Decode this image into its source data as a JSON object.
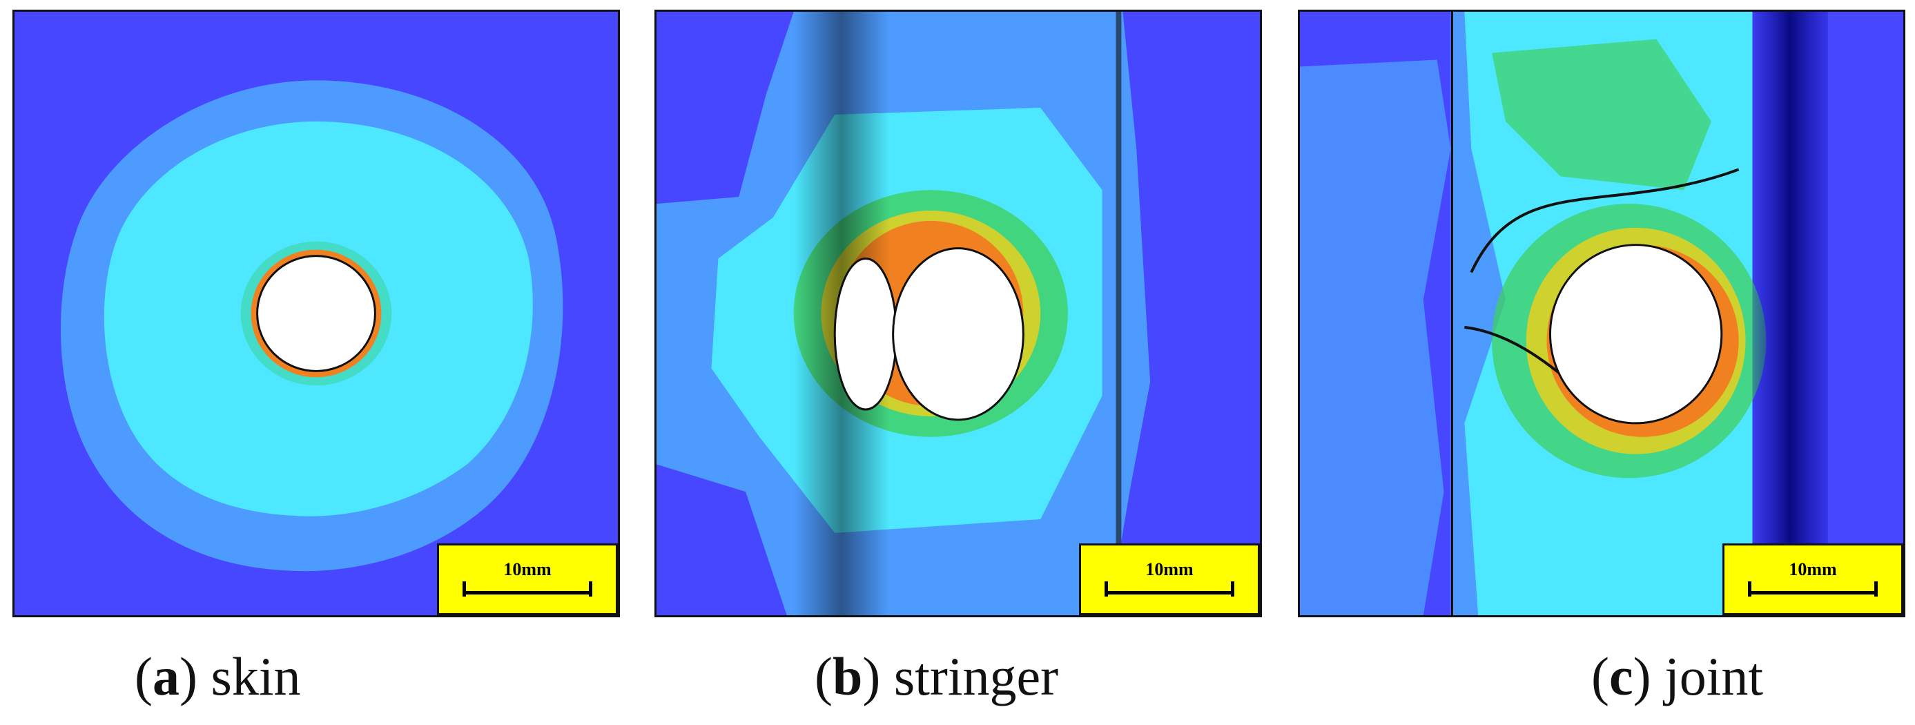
{
  "panels": [
    {
      "id": "a",
      "letter": "a",
      "name": "skin",
      "scale_label": "10mm"
    },
    {
      "id": "b",
      "letter": "b",
      "name": "stringer",
      "scale_label": "10mm"
    },
    {
      "id": "c",
      "letter": "c",
      "name": "joint",
      "scale_label": "10mm"
    }
  ],
  "colors": {
    "background_blue": "#4747ff",
    "light_blue": "#4d9bff",
    "cyan": "#4de8ff",
    "green": "#40d060",
    "yellow": "#e8d020",
    "orange": "#f08020",
    "red": "#e02010",
    "dark_blue": "#1010b0",
    "scalebar_fill": "#ffff00"
  }
}
